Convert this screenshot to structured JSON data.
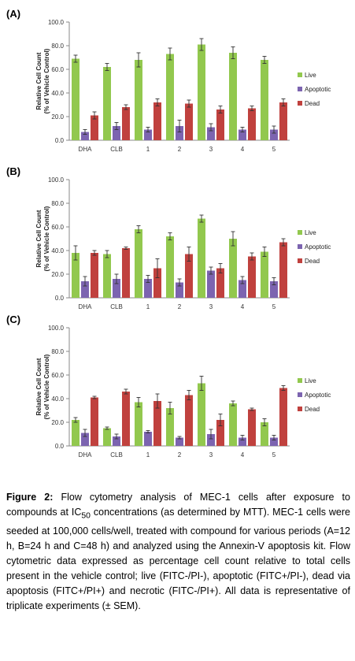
{
  "chart_data": [
    {
      "type": "bar",
      "panel_label": "(A)",
      "ylabel": [
        "Relative Cell Count",
        "(% of Vehicle Control)"
      ],
      "ylim": [
        0,
        100
      ],
      "yticks": [
        "0.0",
        "20.0",
        "40.0",
        "60.0",
        "80.0",
        "100.0"
      ],
      "categories": [
        "DHA",
        "CLB",
        "1",
        "2",
        "3",
        "4",
        "5"
      ],
      "legend_position": "right",
      "series": [
        {
          "name": "Live",
          "color": "#92c84e",
          "values": [
            69,
            62,
            68,
            73,
            81,
            74,
            68
          ],
          "errors": [
            3,
            3,
            6,
            5,
            5,
            5,
            3
          ]
        },
        {
          "name": "Apoptotic",
          "color": "#7c64b0",
          "values": [
            7,
            12,
            9,
            12,
            11,
            9,
            9
          ],
          "errors": [
            2,
            3,
            2,
            5,
            3,
            2,
            3
          ]
        },
        {
          "name": "Dead",
          "color": "#c0413e",
          "values": [
            21,
            28,
            32,
            31,
            26,
            27,
            32
          ],
          "errors": [
            3,
            2,
            3,
            3,
            3,
            2,
            3
          ]
        }
      ]
    },
    {
      "type": "bar",
      "panel_label": "(B)",
      "ylabel": [
        "Relative Cell Count",
        "(% of Vehicle Control)"
      ],
      "ylim": [
        0,
        100
      ],
      "yticks": [
        "0.0",
        "20.0",
        "40.0",
        "60.0",
        "80.0",
        "100.0"
      ],
      "categories": [
        "DHA",
        "CLB",
        "1",
        "2",
        "3",
        "4",
        "5"
      ],
      "legend_position": "right",
      "series": [
        {
          "name": "Live",
          "color": "#92c84e",
          "values": [
            38,
            37,
            58,
            52,
            67,
            50,
            39
          ],
          "errors": [
            6,
            3,
            3,
            3,
            3,
            6,
            4
          ]
        },
        {
          "name": "Apoptotic",
          "color": "#7c64b0",
          "values": [
            14,
            16,
            16,
            13,
            23,
            15,
            14
          ],
          "errors": [
            4,
            4,
            3,
            3,
            3,
            3,
            3
          ]
        },
        {
          "name": "Dead",
          "color": "#c0413e",
          "values": [
            38,
            42,
            25,
            37,
            25,
            35,
            47
          ],
          "errors": [
            2,
            1,
            8,
            6,
            4,
            3,
            3
          ]
        }
      ]
    },
    {
      "type": "bar",
      "panel_label": "(C)",
      "ylabel": [
        "Relative Cell Count",
        "(% of Vehicle Control)"
      ],
      "ylim": [
        0,
        100
      ],
      "yticks": [
        "0.0",
        "20.0",
        "40.0",
        "60.0",
        "80.0",
        "100.0"
      ],
      "categories": [
        "DHA",
        "CLB",
        "1",
        "2",
        "3",
        "4",
        "5"
      ],
      "legend_position": "right",
      "series": [
        {
          "name": "Live",
          "color": "#92c84e",
          "values": [
            22,
            15,
            37,
            32,
            53,
            36,
            20
          ],
          "errors": [
            2,
            1,
            4,
            5,
            6,
            2,
            3
          ]
        },
        {
          "name": "Apoptotic",
          "color": "#7c64b0",
          "values": [
            11,
            8,
            12,
            7,
            10,
            7,
            7
          ],
          "errors": [
            3,
            2,
            1,
            1,
            4,
            2,
            2
          ]
        },
        {
          "name": "Dead",
          "color": "#c0413e",
          "values": [
            41,
            46,
            38,
            43,
            22,
            31,
            49
          ],
          "errors": [
            1,
            2,
            6,
            4,
            5,
            1,
            2
          ]
        }
      ]
    }
  ],
  "caption": {
    "label": "Figure 2:",
    "part1": " Flow cytometry analysis of MEC-1 cells after exposure to compounds at IC",
    "subscript": "50",
    "part2": " concentrations (as determined by MTT). MEC-1 cells were seeded at 100,000 cells/well, treated with compound for various periods (A=12 h, B=24 h and C=48 h) and analyzed using the Annexin-V apoptosis kit. Flow cytometric data expressed as percentage cell count relative to total cells present in the vehicle control; live (FITC-/PI-), apoptotic (FITC+/PI-), dead via apoptosis (FITC+/PI+) and necrotic (FITC-/PI+). All data is representative of triplicate experiments (± SEM)."
  }
}
